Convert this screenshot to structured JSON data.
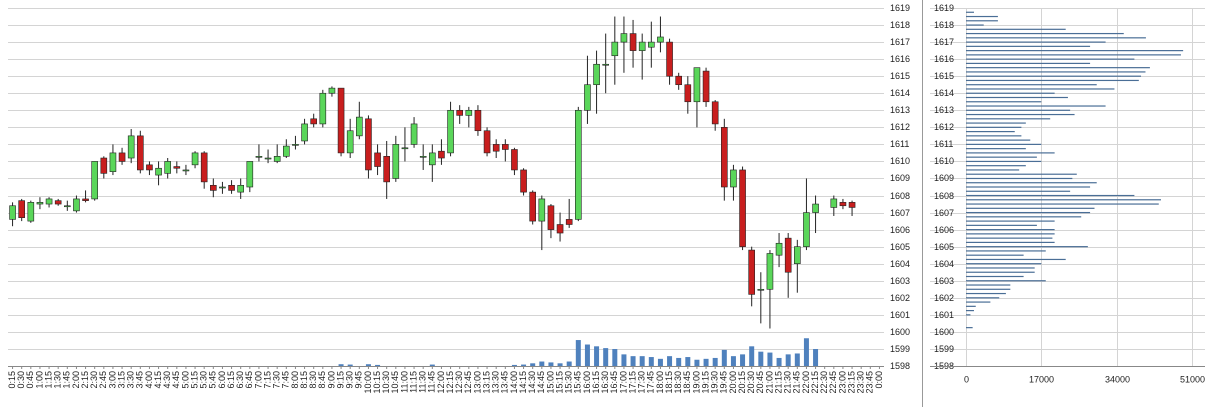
{
  "chart_data": [
    {
      "type": "candlestick",
      "categories": [
        "0:15",
        "0:30",
        "0:45",
        "1:00",
        "1:15",
        "1:30",
        "1:45",
        "2:00",
        "2:15",
        "2:30",
        "2:45",
        "3:00",
        "3:15",
        "3:30",
        "3:45",
        "4:00",
        "4:15",
        "4:30",
        "4:45",
        "5:00",
        "5:15",
        "5:30",
        "5:45",
        "6:00",
        "6:15",
        "6:30",
        "6:45",
        "7:00",
        "7:15",
        "7:30",
        "7:45",
        "8:00",
        "8:15",
        "8:30",
        "8:45",
        "9:00",
        "9:15",
        "9:30",
        "9:45",
        "10:00",
        "10:15",
        "10:30",
        "10:45",
        "11:00",
        "11:15",
        "11:30",
        "11:45",
        "12:00",
        "12:15",
        "12:30",
        "12:45",
        "13:00",
        "13:15",
        "13:30",
        "13:45",
        "14:00",
        "14:15",
        "14:30",
        "14:45",
        "15:00",
        "15:15",
        "15:30",
        "15:45",
        "16:00",
        "16:15",
        "16:30",
        "16:45",
        "17:00",
        "17:15",
        "17:30",
        "17:45",
        "18:00",
        "18:15",
        "18:30",
        "18:45",
        "19:00",
        "19:15",
        "19:30",
        "19:45",
        "20:00",
        "20:15",
        "20:30",
        "20:45",
        "21:00",
        "21:15",
        "21:30",
        "21:45",
        "22:00",
        "22:15",
        "22:30",
        "22:45",
        "23:00",
        "23:15",
        "23:30",
        "23:45",
        "0:00"
      ],
      "open": [
        1606.6,
        1607.7,
        1606.5,
        1607.5,
        1607.5,
        1607.7,
        1607.4,
        1607.1,
        1607.8,
        1607.8,
        1610.2,
        1609.4,
        1610.5,
        1610.2,
        1611.5,
        1609.8,
        1609.2,
        1609.3,
        1609.7,
        1609.5,
        1609.8,
        1610.5,
        1608.6,
        1608.5,
        1608.6,
        1608.2,
        1608.5,
        1610.3,
        1610.2,
        1610.0,
        1610.3,
        1611.0,
        1611.2,
        1612.5,
        1612.2,
        1614.0,
        1614.3,
        1610.5,
        1611.5,
        1612.5,
        1610.5,
        1610.3,
        1609.0,
        1610.8,
        1611.0,
        1610.3,
        1609.8,
        1610.6,
        1610.5,
        1613.0,
        1612.7,
        1613.0,
        1611.8,
        1611.0,
        1611.0,
        1610.7,
        1609.5,
        1608.2,
        1606.5,
        1607.4,
        1606.3,
        1606.6,
        1606.6,
        1613.0,
        1614.5,
        1615.7,
        1616.2,
        1617.0,
        1617.5,
        1616.5,
        1616.7,
        1617.0,
        1617.0,
        1615.0,
        1614.5,
        1613.5,
        1615.3,
        1613.5,
        1612.0,
        1608.5,
        1609.5,
        1604.8,
        1602.5,
        1602.5,
        1604.5,
        1605.5,
        1604.0,
        1605.0,
        1607.0,
        null,
        1607.3,
        1607.6,
        1607.6,
        null,
        null,
        null
      ],
      "high": [
        1607.6,
        1607.8,
        1607.7,
        1607.9,
        1607.9,
        1607.8,
        1607.7,
        1608.0,
        1608.3,
        1610.0,
        1610.3,
        1611.0,
        1610.8,
        1611.9,
        1611.8,
        1610.0,
        1610.0,
        1610.2,
        1610.0,
        1609.8,
        1610.6,
        1610.6,
        1609.0,
        1608.8,
        1608.9,
        1609.0,
        1610.0,
        1611.0,
        1610.7,
        1611.0,
        1611.3,
        1611.5,
        1612.5,
        1612.8,
        1614.2,
        1614.4,
        1614.3,
        1612.5,
        1613.5,
        1612.7,
        1611.0,
        1611.2,
        1611.5,
        1612.0,
        1612.6,
        1611.0,
        1611.0,
        1611.3,
        1613.5,
        1613.3,
        1613.2,
        1613.3,
        1612.0,
        1611.3,
        1611.3,
        1610.8,
        1609.6,
        1608.3,
        1608.0,
        1607.5,
        1607.0,
        1607.8,
        1613.2,
        1616.2,
        1616.5,
        1617.5,
        1618.5,
        1618.5,
        1618.3,
        1617.5,
        1618.2,
        1618.5,
        1617.2,
        1615.2,
        1615.0,
        1615.5,
        1615.5,
        1613.6,
        1612.5,
        1609.8,
        1609.7,
        1605.0,
        1603.5,
        1604.8,
        1605.8,
        1605.8,
        1605.4,
        1609.0,
        1608.0,
        null,
        1608.0,
        1607.8,
        1607.7,
        null,
        null,
        null
      ],
      "low": [
        1606.2,
        1606.5,
        1606.4,
        1607.2,
        1607.3,
        1607.4,
        1607.1,
        1607.0,
        1607.6,
        1607.7,
        1609.0,
        1609.2,
        1609.8,
        1609.9,
        1609.3,
        1609.2,
        1608.6,
        1609.0,
        1609.3,
        1609.2,
        1609.6,
        1608.4,
        1607.9,
        1608.1,
        1608.1,
        1607.8,
        1608.2,
        1610.0,
        1609.9,
        1609.9,
        1610.2,
        1610.7,
        1611.0,
        1612.0,
        1612.0,
        1613.8,
        1610.3,
        1610.2,
        1611.3,
        1609.0,
        1609.2,
        1607.8,
        1608.8,
        1610.0,
        1610.8,
        1609.5,
        1608.8,
        1609.8,
        1610.3,
        1612.2,
        1612.0,
        1611.5,
        1610.3,
        1610.2,
        1610.0,
        1609.2,
        1608.0,
        1606.3,
        1604.8,
        1605.5,
        1605.3,
        1606.1,
        1606.5,
        1612.2,
        1612.8,
        1614.0,
        1614.5,
        1615.2,
        1615.5,
        1614.8,
        1615.5,
        1616.4,
        1614.5,
        1614.2,
        1612.8,
        1612.0,
        1613.2,
        1611.8,
        1607.7,
        1607.7,
        1604.8,
        1601.5,
        1600.5,
        1600.2,
        1603.8,
        1602.0,
        1602.3,
        1604.8,
        1605.8,
        null,
        1606.8,
        1607.2,
        1606.8,
        null,
        null,
        null
      ],
      "close": [
        1607.4,
        1606.7,
        1607.6,
        1607.6,
        1607.8,
        1607.5,
        1607.4,
        1607.8,
        1607.7,
        1610.0,
        1609.3,
        1610.5,
        1610.0,
        1611.5,
        1609.5,
        1609.5,
        1609.6,
        1610.0,
        1609.6,
        1609.5,
        1610.5,
        1608.8,
        1608.3,
        1608.5,
        1608.3,
        1608.6,
        1610.0,
        1610.3,
        1610.2,
        1610.3,
        1610.9,
        1611.0,
        1612.2,
        1612.2,
        1614.0,
        1614.3,
        1610.5,
        1611.8,
        1612.6,
        1609.5,
        1609.7,
        1608.8,
        1611.0,
        1610.8,
        1612.2,
        1610.3,
        1610.5,
        1610.2,
        1613.0,
        1612.7,
        1613.0,
        1611.8,
        1610.5,
        1610.6,
        1610.7,
        1609.5,
        1608.2,
        1606.5,
        1607.8,
        1606.0,
        1605.8,
        1606.3,
        1613.0,
        1614.5,
        1615.7,
        1615.7,
        1617.0,
        1617.5,
        1616.5,
        1617.0,
        1617.0,
        1617.3,
        1615.0,
        1614.5,
        1613.5,
        1615.5,
        1613.5,
        1612.2,
        1608.5,
        1609.5,
        1605.0,
        1602.2,
        1602.5,
        1604.6,
        1605.2,
        1603.5,
        1605.0,
        1607.0,
        1607.5,
        null,
        1607.8,
        1607.4,
        1607.3,
        null,
        null,
        null
      ],
      "volume": [
        null,
        null,
        null,
        null,
        null,
        null,
        null,
        null,
        null,
        null,
        null,
        null,
        null,
        null,
        null,
        null,
        null,
        null,
        null,
        null,
        null,
        null,
        null,
        null,
        null,
        null,
        null,
        null,
        null,
        null,
        null,
        null,
        null,
        null,
        null,
        null,
        100,
        80,
        null,
        100,
        60,
        null,
        null,
        null,
        null,
        null,
        80,
        null,
        null,
        null,
        null,
        null,
        null,
        null,
        null,
        60,
        80,
        150,
        250,
        200,
        150,
        250,
        1450,
        1200,
        1100,
        1000,
        950,
        650,
        550,
        550,
        500,
        400,
        550,
        450,
        500,
        350,
        400,
        450,
        900,
        550,
        650,
        1100,
        800,
        750,
        450,
        650,
        700,
        1550,
        950,
        null,
        null,
        null,
        null,
        null,
        null,
        null
      ],
      "ylim": [
        1598,
        1619
      ],
      "yticks": [
        1598,
        1599,
        1600,
        1601,
        1602,
        1603,
        1604,
        1605,
        1606,
        1607,
        1608,
        1609,
        1610,
        1611,
        1612,
        1613,
        1614,
        1615,
        1616,
        1617,
        1618,
        1619
      ],
      "y2lim": [
        0,
        20000
      ],
      "up_color": "#5ad65a",
      "down_color": "#c81e1e",
      "volume_color": "#4f81bd",
      "grid": true
    },
    {
      "type": "bar",
      "orientation": "horizontal",
      "y": [
        1618.75,
        1618.5,
        1618.25,
        1618,
        1617.75,
        1617.5,
        1617.25,
        1617,
        1616.75,
        1616.5,
        1616.25,
        1616,
        1615.75,
        1615.5,
        1615.25,
        1615,
        1614.75,
        1614.5,
        1614.25,
        1614,
        1613.75,
        1613.5,
        1613.25,
        1613,
        1612.75,
        1612.5,
        1612.25,
        1612,
        1611.75,
        1611.5,
        1611.25,
        1611,
        1610.75,
        1610.5,
        1610.25,
        1610,
        1609.75,
        1609.5,
        1609.25,
        1609,
        1608.75,
        1608.5,
        1608.25,
        1608,
        1607.75,
        1607.5,
        1607.25,
        1607,
        1606.75,
        1606.5,
        1606.25,
        1606,
        1605.75,
        1605.5,
        1605.25,
        1605,
        1604.75,
        1604.5,
        1604.25,
        1604,
        1603.75,
        1603.5,
        1603.25,
        1603,
        1602.75,
        1602.5,
        1602.25,
        1602,
        1601.75,
        1601.5,
        1601.25,
        1601,
        1600.25
      ],
      "values": [
        1800,
        7200,
        7200,
        4000,
        22500,
        35600,
        40600,
        31500,
        28000,
        49000,
        48500,
        38000,
        28000,
        41500,
        40500,
        39500,
        39000,
        29500,
        33500,
        20000,
        23000,
        17000,
        31500,
        23500,
        24500,
        19000,
        13500,
        12500,
        11000,
        12500,
        14500,
        17000,
        13500,
        20000,
        16000,
        17000,
        13500,
        12000,
        25000,
        24000,
        29500,
        28000,
        23500,
        38000,
        44000,
        43500,
        29000,
        28000,
        26000,
        20000,
        16000,
        20000,
        20000,
        19500,
        20000,
        27500,
        18000,
        13000,
        22500,
        17000,
        15500,
        15500,
        13000,
        18000,
        10000,
        10000,
        9000,
        7500,
        5500,
        2200,
        1800,
        1000,
        1500
      ],
      "color": "#4a6e96",
      "ylim": [
        1598,
        1619
      ],
      "yticks": [
        1598,
        1599,
        1600,
        1601,
        1602,
        1603,
        1604,
        1605,
        1606,
        1607,
        1608,
        1609,
        1610,
        1611,
        1612,
        1613,
        1614,
        1615,
        1616,
        1617,
        1618,
        1619
      ],
      "xlim": [
        0,
        51000
      ],
      "xticks": [
        0,
        17000,
        34000,
        51000
      ],
      "grid": true
    }
  ]
}
